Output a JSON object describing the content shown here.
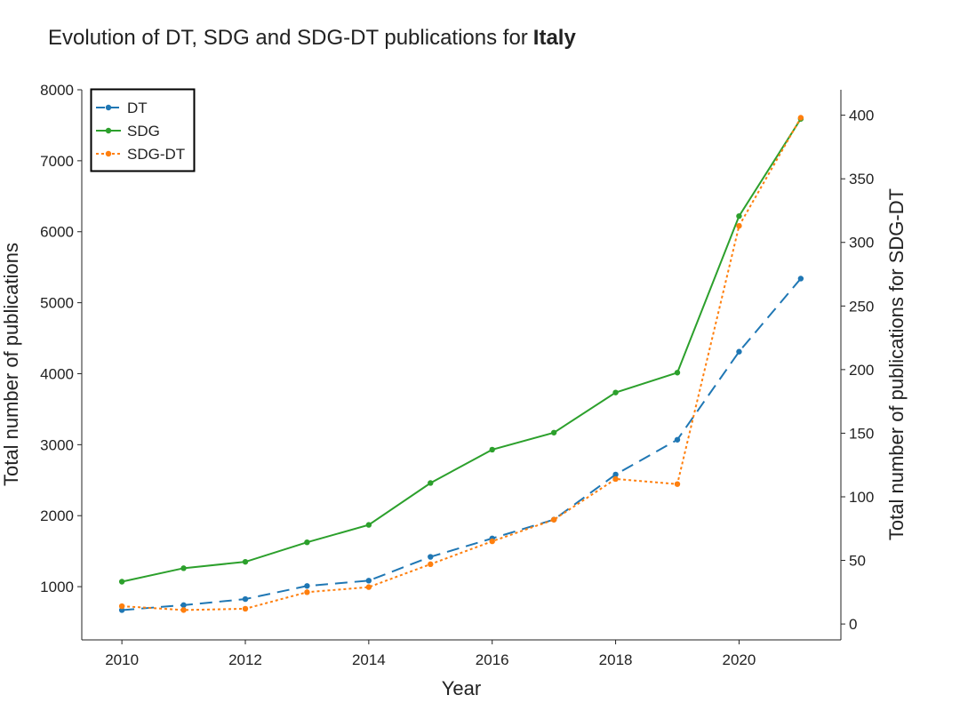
{
  "chart_data": {
    "type": "line",
    "title": "Evolution of DT, SDG and SDG-DT publications for",
    "title_emphasis": "Italy",
    "xlabel": "Year",
    "ylabel": "Total number of publications",
    "ylabel_right": "Total number of publications for SDG-DT",
    "xlim": [
      2009.35,
      2021.65
    ],
    "ylim": [
      250,
      8000
    ],
    "ylim_right": [
      -12.5,
      420
    ],
    "x_ticks": [
      2010,
      2012,
      2014,
      2016,
      2018,
      2020
    ],
    "y_ticks": [
      1000,
      2000,
      3000,
      4000,
      5000,
      6000,
      7000,
      8000
    ],
    "y_ticks_right": [
      0,
      50,
      100,
      150,
      200,
      250,
      300,
      350,
      400
    ],
    "grid": false,
    "legend_position": "top-left",
    "x": [
      2010,
      2011,
      2012,
      2013,
      2014,
      2015,
      2016,
      2017,
      2018,
      2019,
      2020,
      2021
    ],
    "series": [
      {
        "name": "DT",
        "axis": "left",
        "color": "#1f77b4",
        "line_style": "dashed",
        "values": [
          670,
          740,
          825,
          1010,
          1085,
          1420,
          1680,
          1945,
          2580,
          3070,
          4310,
          5340
        ]
      },
      {
        "name": "SDG",
        "axis": "left",
        "color": "#2ca02c",
        "line_style": "solid",
        "values": [
          1070,
          1260,
          1350,
          1625,
          1870,
          2460,
          2930,
          3170,
          3735,
          4015,
          6220,
          7590
        ]
      },
      {
        "name": "SDG-DT",
        "axis": "right",
        "color": "#ff7f0e",
        "line_style": "dotted",
        "values": [
          14,
          11,
          12,
          25,
          29,
          47,
          65,
          82,
          114,
          110,
          313,
          398
        ]
      }
    ]
  }
}
